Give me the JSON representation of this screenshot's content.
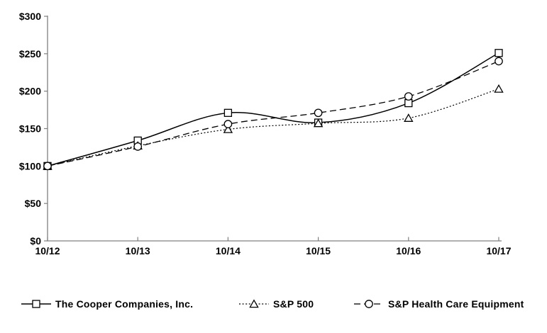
{
  "chart_data": {
    "type": "line",
    "title": "",
    "xlabel": "",
    "ylabel": "",
    "x": [
      "10/12",
      "10/13",
      "10/14",
      "10/15",
      "10/16",
      "10/17"
    ],
    "series": [
      {
        "name": "The Cooper Companies, Inc.",
        "marker": "square",
        "line_style": "solid",
        "color": "#000000",
        "values": [
          100,
          134,
          171,
          158,
          184,
          251
        ]
      },
      {
        "name": "S&P 500",
        "marker": "triangle",
        "line_style": "dotted",
        "color": "#000000",
        "values": [
          100,
          127,
          149,
          157,
          164,
          203
        ]
      },
      {
        "name": "S&P Health Care Equipment",
        "marker": "circle",
        "line_style": "dashed",
        "color": "#000000",
        "values": [
          100,
          126,
          156,
          171,
          193,
          240
        ]
      }
    ],
    "ylim": [
      0,
      300
    ],
    "ytick_step": 50,
    "ytick_labels": [
      "$0",
      "$50",
      "$100",
      "$150",
      "$200",
      "$250",
      "$300"
    ],
    "grid": false,
    "legend_position": "bottom",
    "smoothed_lines": true,
    "axis_color": "#808080",
    "text_color": "#000000",
    "background": "#ffffff"
  }
}
